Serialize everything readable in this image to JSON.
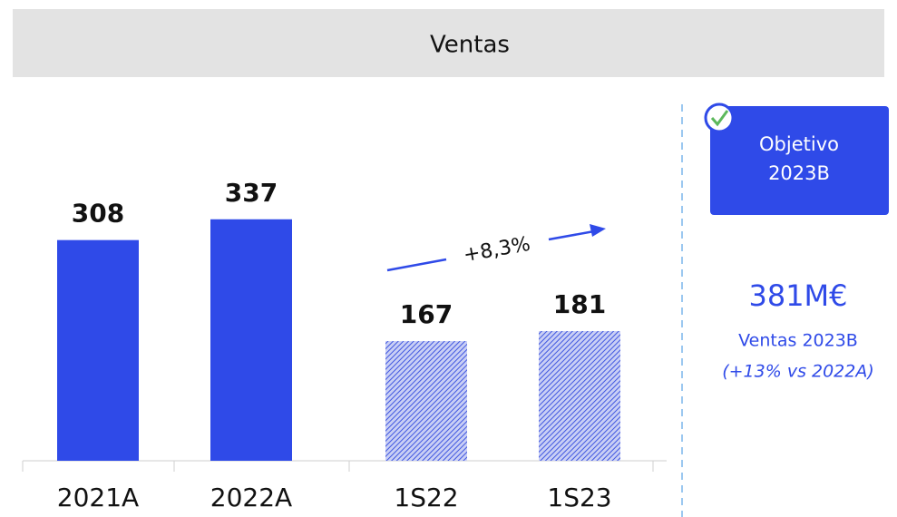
{
  "chart_data": {
    "type": "bar",
    "title": "Ventas",
    "categories": [
      "2021A",
      "2022A",
      "1S22",
      "1S23"
    ],
    "values": [
      308,
      337,
      167,
      181
    ],
    "patterns": [
      "solid",
      "solid",
      "hatched",
      "hatched"
    ],
    "color": "#2f4ae8",
    "annotation": "+8,3%",
    "target": {
      "heading": [
        "Objetivo",
        "2023B"
      ],
      "value": "381M€",
      "caption": "Ventas 2023B",
      "note": "(+13% vs 2022A)"
    }
  }
}
